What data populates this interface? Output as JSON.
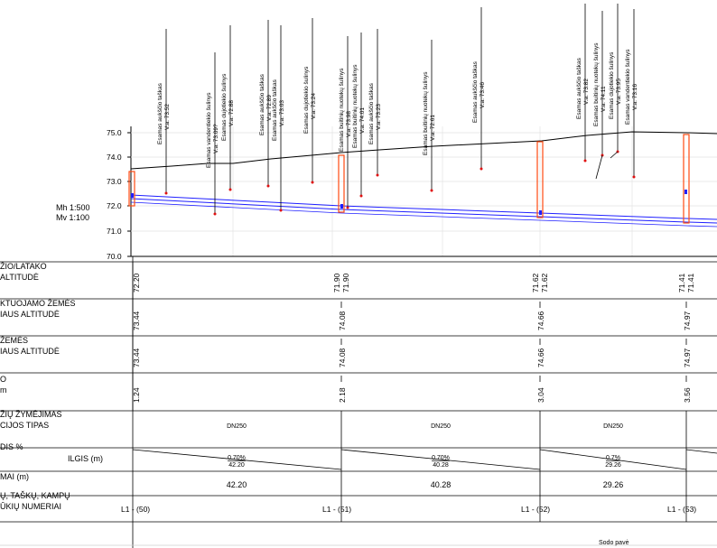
{
  "scale": {
    "horizontal": "Mh 1:500",
    "vertical": "Mv 1:100"
  },
  "axis": {
    "ticks": [
      "75.0",
      "74.0",
      "73.0",
      "72.0",
      "71.0",
      "70.0"
    ]
  },
  "callouts": [
    {
      "title": "Esamas aukščio taškas",
      "value": "V.a. 73.52"
    },
    {
      "title": "Esamas vandentiekio šulinys",
      "value": "V.a. 73.09?"
    },
    {
      "title": "Esamas dujotiekio šulinys",
      "value": "V.a. 72.88"
    },
    {
      "title": "Esamas aukščio taškas",
      "value": "V.a. 72.89"
    },
    {
      "title": "Esamas aukščio taškas",
      "value": "V.a. 73.03"
    },
    {
      "title": "Esamas dujotiekio šulinys",
      "value": "V.a. 73.24"
    },
    {
      "title": "Esamas buitinių nuotekų šulinys",
      "value": "V.a. 73.98"
    },
    {
      "title": "Esamas buitinių nuotekų šulinys",
      "value": "V.a. 74.01"
    },
    {
      "title": "Esamas aukščio taškas",
      "value": "V.a. 73.23"
    },
    {
      "title": "Esamas buitinių nuotekų šulinys",
      "value": "V.a. 72.61"
    },
    {
      "title": "Esamas aukščio taškas",
      "value": "V.a. 73.46"
    },
    {
      "title": "Esamas aukščio taškas",
      "value": "V.a. 73.82"
    },
    {
      "title": "Esamas buitinių nuotekų šulinys",
      "value": "V.a. 74.11"
    },
    {
      "title": "Esamas dujotiekio šulinys",
      "value": "V.a. 73.95"
    },
    {
      "title": "Esamas vandentiekio šulinys",
      "value": "V.a. 73.16"
    }
  ],
  "table_rows": [
    {
      "label_lines": [
        "ŽIO/LATAKO",
        "ALTITUDĖ"
      ]
    },
    {
      "label_lines": [
        "KTUOJAMO ŽEMĖS",
        "IAUS ALTITUDĖ"
      ]
    },
    {
      "label_lines": [
        "ŽEMĖS",
        "IAUS ALTITUDĖ"
      ]
    },
    {
      "label_lines": [
        "O",
        "m"
      ]
    },
    {
      "label_lines": [
        "ŽIŲ ŽYMĖJIMAS",
        "CIJOS TIPAS"
      ]
    },
    {
      "label_lines": [
        "DIS %"
      ],
      "sub_label": "ILGIS (m)"
    },
    {
      "label_lines": [
        "MAI (m)"
      ]
    },
    {
      "label_lines": [
        "Ų, TAŠKŲ, KAMPŲ",
        "ŪKIŲ NUMERIAI"
      ]
    }
  ],
  "stations": [
    {
      "invert_values": [
        "72.20"
      ],
      "design_ground": "73.44",
      "existing_ground": "73.44",
      "depth": "1.24",
      "node": "L1 - (50)"
    },
    {
      "invert_values": [
        "71.90",
        "71.90"
      ],
      "design_ground": "74.08",
      "existing_ground": "74.08",
      "depth": "2.18",
      "node": "L1 - (51)"
    },
    {
      "invert_values": [
        "71.62",
        "71.62"
      ],
      "design_ground": "74.66",
      "existing_ground": "74.66",
      "depth": "3.04",
      "node": "L1 - (52)"
    },
    {
      "invert_values": [
        "71.41",
        "71.41"
      ],
      "design_ground": "74.97",
      "existing_ground": "74.97",
      "depth": "3.56",
      "node": "L1 - (53)"
    }
  ],
  "segments": [
    {
      "pipe": "DN250",
      "slope": "0.70%",
      "slope_length": "42.20",
      "length": "42.20"
    },
    {
      "pipe": "DN250",
      "slope": "0.70%",
      "slope_length": "40.28",
      "length": "40.28"
    },
    {
      "pipe": "DN250",
      "slope": "0.7%",
      "slope_length": "29.26",
      "length": "29.26"
    }
  ],
  "footer_note": "Sodo pavė"
}
